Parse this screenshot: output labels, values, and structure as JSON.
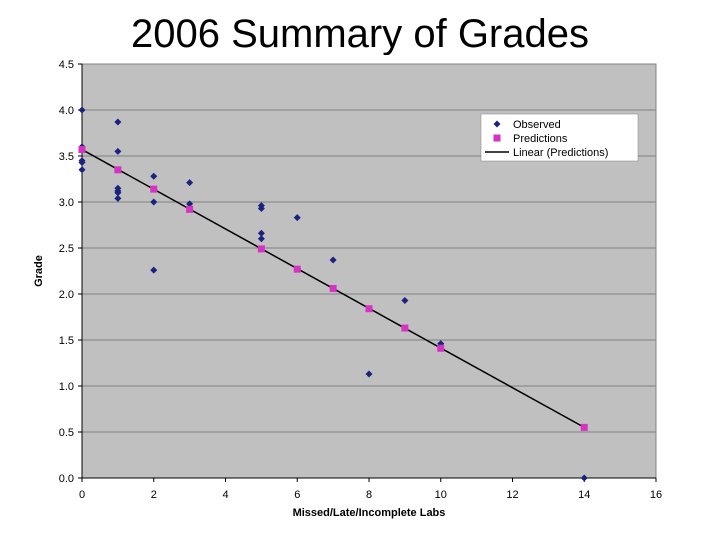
{
  "slide": {
    "title": "2006 Summary of Grades"
  },
  "colors": {
    "observed": "#1a237e",
    "predictions": "#d633c4",
    "trendline": "#000000",
    "plot_background": "#c0c0c0",
    "gridline": "#808080"
  },
  "chart_data": {
    "type": "scatter",
    "xlabel": "Missed/Late/Incomplete Labs",
    "ylabel": "Grade",
    "xlim": [
      0,
      16
    ],
    "ylim": [
      0.0,
      4.5
    ],
    "x_ticks": [
      "0",
      "2",
      "4",
      "6",
      "8",
      "10",
      "12",
      "14",
      "16"
    ],
    "y_ticks": [
      "0.0",
      "0.5",
      "1.0",
      "1.5",
      "2.0",
      "2.5",
      "3.0",
      "3.5",
      "4.0",
      "4.5"
    ],
    "grid": "horizontal",
    "legend_position": "top-right",
    "series": [
      {
        "name": "Observed",
        "marker": "diamond",
        "points": [
          [
            0,
            4.0
          ],
          [
            0,
            3.6
          ],
          [
            0,
            3.45
          ],
          [
            0,
            3.43
          ],
          [
            0,
            3.35
          ],
          [
            1,
            3.87
          ],
          [
            1,
            3.55
          ],
          [
            1,
            3.15
          ],
          [
            1,
            3.12
          ],
          [
            1,
            3.1
          ],
          [
            1,
            3.04
          ],
          [
            2,
            3.28
          ],
          [
            2,
            3.0
          ],
          [
            2,
            2.26
          ],
          [
            3,
            3.21
          ],
          [
            3,
            2.98
          ],
          [
            5,
            2.96
          ],
          [
            5,
            2.93
          ],
          [
            5,
            2.66
          ],
          [
            5,
            2.6
          ],
          [
            6,
            2.83
          ],
          [
            7,
            2.37
          ],
          [
            8,
            1.13
          ],
          [
            9,
            1.93
          ],
          [
            10,
            1.46
          ],
          [
            14,
            0.0
          ]
        ]
      },
      {
        "name": "Predictions",
        "marker": "square",
        "points": [
          [
            0,
            3.57
          ],
          [
            1,
            3.35
          ],
          [
            2,
            3.14
          ],
          [
            3,
            2.92
          ],
          [
            5,
            2.49
          ],
          [
            6,
            2.27
          ],
          [
            7,
            2.06
          ],
          [
            8,
            1.84
          ],
          [
            9,
            1.63
          ],
          [
            10,
            1.41
          ],
          [
            14,
            0.55
          ]
        ]
      },
      {
        "name": "Linear (Predictions)",
        "marker": "line",
        "points": [
          [
            0,
            3.57
          ],
          [
            14,
            0.55
          ]
        ]
      }
    ]
  }
}
